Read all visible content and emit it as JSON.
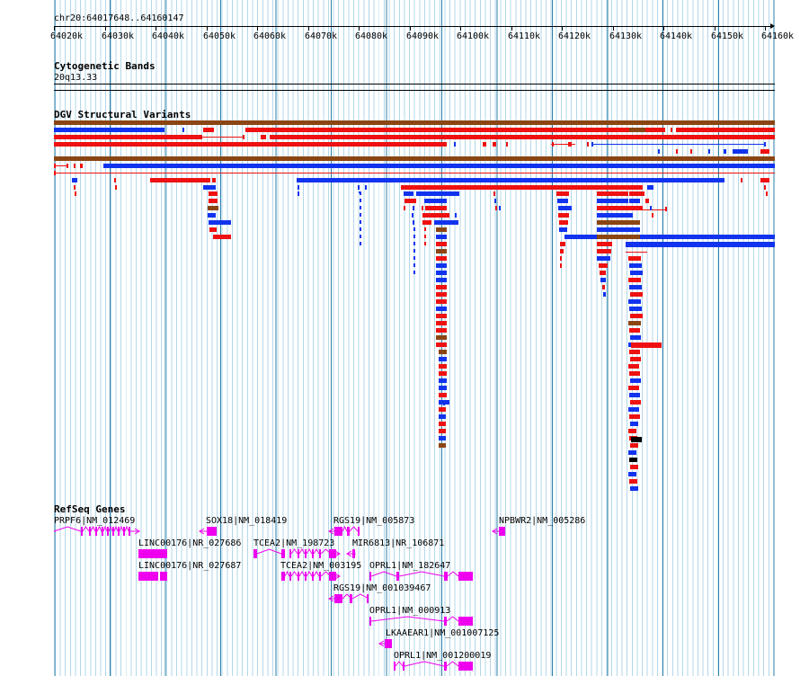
{
  "region": "chr20:64017648..64160147",
  "ruler_ticks": [
    "64020k",
    "64030k",
    "64040k",
    "64050k",
    "64060k",
    "64070k",
    "64080k",
    "64090k",
    "64100k",
    "64110k",
    "64120k",
    "64130k",
    "64140k",
    "64150k",
    "64160k"
  ],
  "tracks": {
    "cytoband": {
      "title": "Cytogenetic Bands",
      "band": "20q13.33"
    },
    "dgv": {
      "title": "DGV Structural Variants"
    },
    "refseq": {
      "title": "RefSeq Genes"
    }
  },
  "genes": [
    "PRPF6|NM_012469",
    "SOX18|NM_018419",
    "RGS19|NM_005873",
    "NPBWR2|NM_005286",
    "LINC00176|NR_027686",
    "TCEA2|NM_198723",
    "MIR6813|NR_106871",
    "LINC00176|NR_027687",
    "TCEA2|NM_003195",
    "OPRL1|NM_182647",
    "RGS19|NM_001039467",
    "OPRL1|NM_000913",
    "LKAAEAR1|NM_001007125",
    "OPRL1|NM_001200019"
  ],
  "colors": {
    "gain": "#ee1111",
    "loss": "#1133ee",
    "gain_loss": "#8b4513",
    "complex": "#000000",
    "gene": "#ee00ee",
    "major_grid": "#2b7fa8",
    "minor_grid": "#b3d7e9"
  }
}
